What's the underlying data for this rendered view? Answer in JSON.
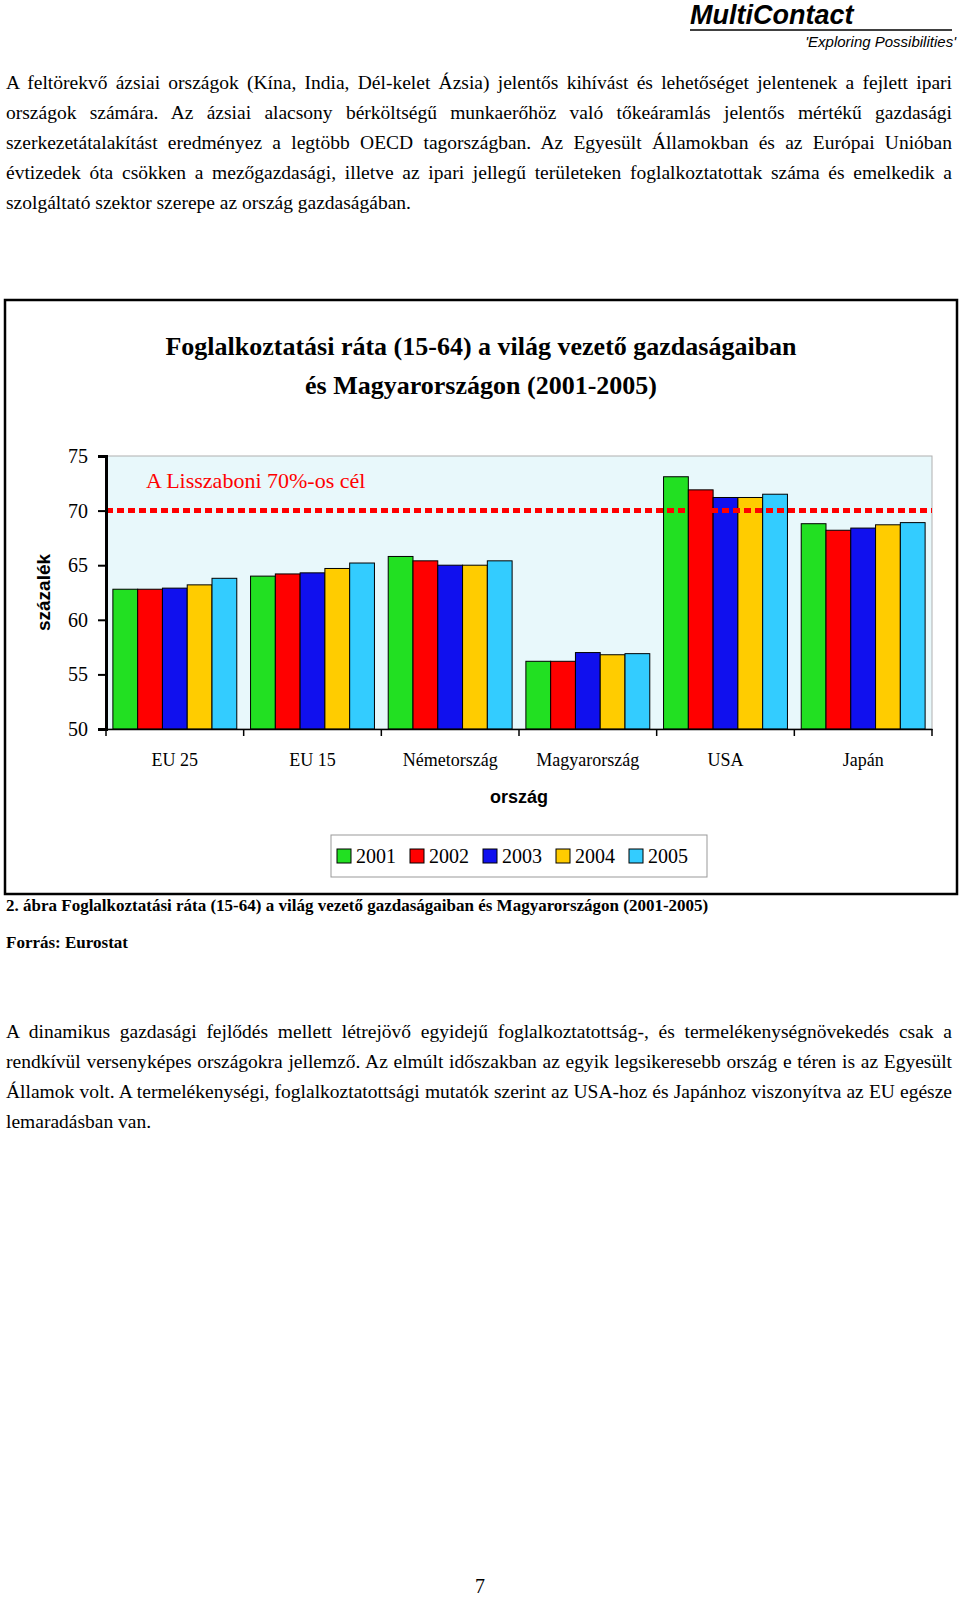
{
  "header": {
    "brand": "MultiContact",
    "tagline": "'Exploring Possibilities'"
  },
  "paragraphs": [
    "A feltörekvő ázsiai országok (Kína, India, Dél-kelet Ázsia) jelentős kihívást és lehetőséget jelentenek a fejlett ipari országok számára. Az ázsiai alacsony bérköltségű munkaerőhöz való tőkeáramlás jelentős mértékű gazdasági szerkezetátalakítást eredményez a legtöbb OECD tagországban. Az Egyesült Államokban és az Európai Unióban évtizedek óta csökken a mezőgazdasági, illetve az ipari jellegű területeken foglalkoztatottak száma és emelkedik a szolgáltató szektor szerepe az ország gazdaságában.",
    "A dinamikus gazdasági fejlődés mellett létrejövő egyidejű foglalkoztatottság-, és termelékenységnövekedés csak a rendkívül versenyképes országokra jellemző. Az elmúlt időszakban az egyik legsikeresebb ország e téren is az Egyesült Államok volt. A termelékenységi, foglalkoztatottsági mutatók szerint az USA-hoz és Japánhoz viszonyítva az EU egésze lemaradásban van."
  ],
  "chart_data": {
    "type": "bar",
    "title": [
      "Foglalkoztatási ráta (15-64) a világ vezető gazdaságaiban",
      "és Magyarországon (2001-2005)"
    ],
    "x_label": "ország",
    "y_label": "százalék",
    "categories": [
      "EU 25",
      "EU 15",
      "Németország",
      "Magyarország",
      "USA",
      "Japán"
    ],
    "series": [
      {
        "name": "2001",
        "color": "#22e022",
        "values": [
          62.8,
          64.0,
          65.8,
          56.2,
          73.1,
          68.8
        ]
      },
      {
        "name": "2002",
        "color": "#ff0000",
        "values": [
          62.8,
          64.2,
          65.4,
          56.2,
          71.9,
          68.2
        ]
      },
      {
        "name": "2003",
        "color": "#1010ee",
        "values": [
          62.9,
          64.3,
          65.0,
          57.0,
          71.2,
          68.4
        ]
      },
      {
        "name": "2004",
        "color": "#ffcc00",
        "values": [
          63.2,
          64.7,
          65.0,
          56.8,
          71.2,
          68.7
        ]
      },
      {
        "name": "2005",
        "color": "#33ccff",
        "values": [
          63.8,
          65.2,
          65.4,
          56.9,
          71.5,
          68.9
        ]
      }
    ],
    "ylim": [
      50,
      75
    ],
    "yticks": [
      50,
      55,
      60,
      65,
      70,
      75
    ],
    "grid": false,
    "legend": "bottom",
    "annotations": [
      {
        "text": "A Lisszaboni 70%-os cél",
        "value": 70,
        "color": "#ff0000"
      }
    ]
  },
  "caption": "2. ábra Foglalkoztatási ráta (15-64) a világ vezető gazdaságaiban és Magyarországon (2001-2005)",
  "source": "Forrás: Eurostat",
  "page_number": 7
}
